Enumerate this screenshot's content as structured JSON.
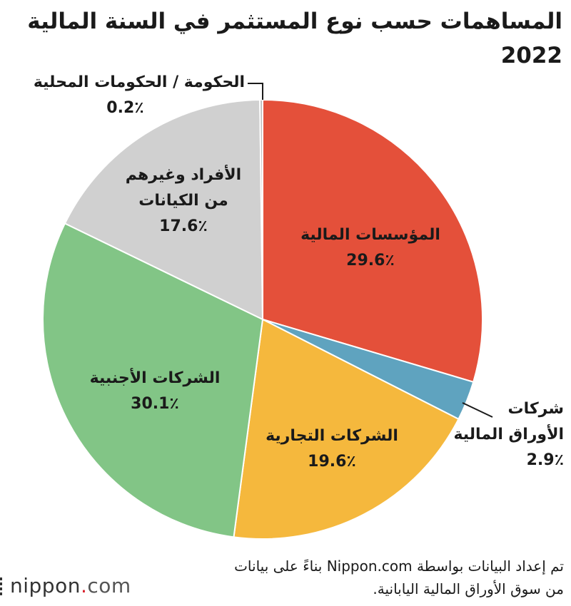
{
  "title": "المساهمات حسب نوع المستثمر في السنة المالية 2022",
  "chart_data": {
    "type": "pie",
    "start_angle_deg": 0,
    "direction": "clockwise",
    "slices": [
      {
        "label": "المؤسسات المالية",
        "value": 29.6,
        "value_text": "29.6٪",
        "color": "#e4503a"
      },
      {
        "label": "شركات الأوراق المالية",
        "value": 2.9,
        "value_text": "2.9٪",
        "color": "#5fa3bf"
      },
      {
        "label": "الشركات التجارية",
        "value": 19.6,
        "value_text": "19.6٪",
        "color": "#f5b83d"
      },
      {
        "label": "الشركات الأجنبية",
        "value": 30.1,
        "value_text": "30.1٪",
        "color": "#82c586"
      },
      {
        "label": "الأفراد وغيرهم من الكيانات",
        "value": 17.6,
        "value_text": "17.6٪",
        "color": "#d0d0d0"
      },
      {
        "label": "الحكومة / الحكومات المحلية",
        "value": 0.2,
        "value_text": "0.2٪",
        "color": "#bdbdbd"
      }
    ]
  },
  "labels": {
    "financial": {
      "line1": "المؤسسات المالية",
      "pct": "29.6٪"
    },
    "securities": {
      "line1": "شركات",
      "line2": "الأوراق المالية",
      "pct": "2.9٪"
    },
    "business": {
      "line1": "الشركات التجارية",
      "pct": "19.6٪"
    },
    "foreign": {
      "line1": "الشركات الأجنبية",
      "pct": "30.1٪"
    },
    "individuals": {
      "line1": "الأفراد وغيرهم",
      "line2": "من الكيانات",
      "pct": "17.6٪"
    },
    "government": {
      "line1": "الحكومة / الحكومات المحلية",
      "pct": "0.2٪"
    }
  },
  "source": {
    "line1": "تم إعداد البيانات بواسطة Nippon.com بناءً على بيانات",
    "line2": "من سوق الأوراق المالية اليابانية."
  },
  "brand": {
    "name": "nippon",
    "dot": ".",
    "tld": "com",
    "accent_color": "#d9232f"
  }
}
